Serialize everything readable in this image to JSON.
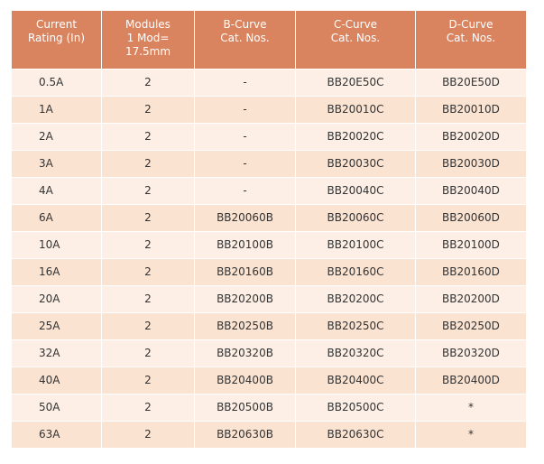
{
  "table": {
    "header": [
      "Current\nRating (In)",
      "Modules\n1 Mod=\n17.5mm",
      "B-Curve\nCat. Nos.",
      "C-Curve\nCat. Nos.",
      "D-Curve\nCat. Nos."
    ],
    "rows": [
      [
        "0.5A",
        "2",
        "-",
        "BB20E50C",
        "BB20E50D"
      ],
      [
        "1A",
        "2",
        "-",
        "BB20010C",
        "BB20010D"
      ],
      [
        "2A",
        "2",
        "-",
        "BB20020C",
        "BB20020D"
      ],
      [
        "3A",
        "2",
        "-",
        "BB20030C",
        "BB20030D"
      ],
      [
        "4A",
        "2",
        "-",
        "BB20040C",
        "BB20040D"
      ],
      [
        "6A",
        "2",
        "BB20060B",
        "BB20060C",
        "BB20060D"
      ],
      [
        "10A",
        "2",
        "BB20100B",
        "BB20100C",
        "BB20100D"
      ],
      [
        "16A",
        "2",
        "BB20160B",
        "BB20160C",
        "BB20160D"
      ],
      [
        "20A",
        "2",
        "BB20200B",
        "BB20200C",
        "BB20200D"
      ],
      [
        "25A",
        "2",
        "BB20250B",
        "BB20250C",
        "BB20250D"
      ],
      [
        "32A",
        "2",
        "BB20320B",
        "BB20320C",
        "BB20320D"
      ],
      [
        "40A",
        "2",
        "BB20400B",
        "BB20400C",
        "BB20400D"
      ],
      [
        "50A",
        "2",
        "BB20500B",
        "BB20500C",
        "*"
      ],
      [
        "63A",
        "2",
        "BB20630B",
        "BB20630C",
        "*"
      ]
    ]
  }
}
